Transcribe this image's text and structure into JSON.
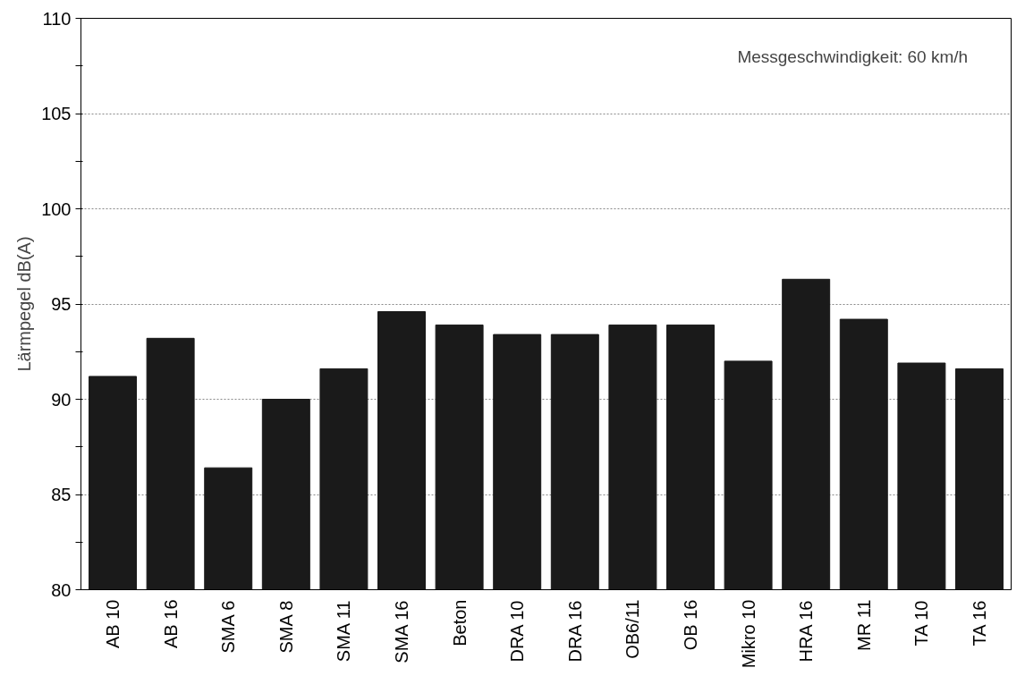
{
  "chart_data": {
    "type": "bar",
    "ylabel": "Lärmpegel dB(A)",
    "categories": [
      "AB 10",
      "AB 16",
      "SMA 6",
      "SMA 8",
      "SMA 11",
      "SMA 16",
      "Beton",
      "DRA 10",
      "DRA 16",
      "OB6/11",
      "OB 16",
      "Mikro 10",
      "HRA 16",
      "MR 11",
      "TA 10",
      "TA 16"
    ],
    "values": [
      91.2,
      93.2,
      86.4,
      90.0,
      91.6,
      94.6,
      93.9,
      93.4,
      93.4,
      93.9,
      93.9,
      92.0,
      96.3,
      94.2,
      91.9,
      91.6
    ],
    "color": "#1a1a1a",
    "ylim": [
      80,
      110
    ],
    "yticks": [
      80,
      {
        "value": 82.5,
        "label": null
      },
      85,
      {
        "value": 87.5,
        "label": null
      },
      90,
      {
        "value": 92.5,
        "label": null
      },
      95,
      {
        "value": 97.5,
        "label": null
      },
      100,
      {
        "value": 102.5,
        "label": null
      },
      105,
      {
        "value": 107.5,
        "label": null
      },
      110
    ],
    "grid": "y",
    "annotations": [
      "Messgeschwindigkeit: 60 km/h"
    ]
  }
}
